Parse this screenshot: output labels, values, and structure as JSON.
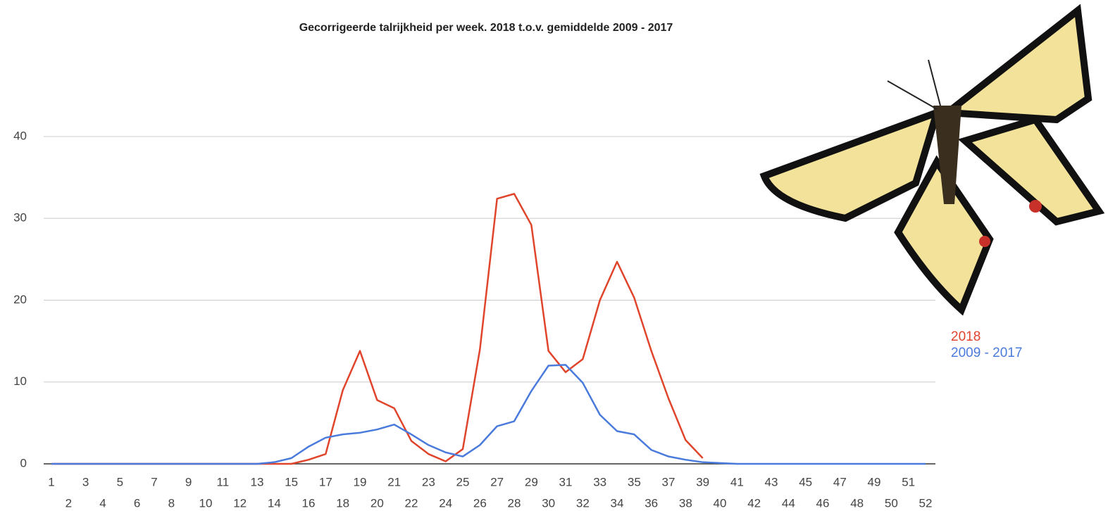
{
  "chart_data": {
    "type": "line",
    "title": "Gecorrigeerde talrijkheid per week. 2018 t.o.v. gemiddelde 2009 - 2017",
    "x": [
      1,
      2,
      3,
      4,
      5,
      6,
      7,
      8,
      9,
      10,
      11,
      12,
      13,
      14,
      15,
      16,
      17,
      18,
      19,
      20,
      21,
      22,
      23,
      24,
      25,
      26,
      27,
      28,
      29,
      30,
      31,
      32,
      33,
      34,
      35,
      36,
      37,
      38,
      39,
      40,
      41,
      42,
      43,
      44,
      45,
      46,
      47,
      48,
      49,
      50,
      51,
      52
    ],
    "xlim": [
      1,
      52
    ],
    "xticks": [
      1,
      2,
      3,
      4,
      5,
      6,
      7,
      8,
      9,
      10,
      11,
      12,
      13,
      14,
      15,
      16,
      17,
      18,
      19,
      20,
      21,
      22,
      23,
      24,
      25,
      26,
      27,
      28,
      29,
      30,
      31,
      32,
      33,
      34,
      35,
      36,
      37,
      38,
      39,
      40,
      41,
      42,
      43,
      44,
      45,
      46,
      47,
      48,
      49,
      50,
      51,
      52
    ],
    "ylim": [
      0,
      40
    ],
    "yticks": [
      0,
      10,
      20,
      30,
      40
    ],
    "grid": true,
    "legend": "right",
    "series": [
      {
        "name": "2018",
        "color": "#e0452c",
        "values": [
          0,
          0,
          0,
          0,
          0,
          0,
          0,
          0,
          0,
          0,
          0,
          0,
          0,
          0,
          0,
          0.5,
          1.2,
          9,
          13.8,
          7.8,
          6.8,
          2.8,
          1.2,
          0.3,
          1.8,
          14,
          32.4,
          33,
          29.2,
          13.8,
          11.2,
          12.8,
          20,
          24.7,
          20.3,
          13.8,
          8,
          2.9,
          0.7,
          null,
          null,
          null,
          null,
          null,
          null,
          null,
          null,
          null,
          null,
          null,
          null,
          null
        ]
      },
      {
        "name": "2009 - 2017",
        "color": "#4a7bdc",
        "values": [
          0,
          0,
          0,
          0,
          0,
          0,
          0,
          0,
          0,
          0,
          0,
          0,
          0,
          0.2,
          0.7,
          2.1,
          3.2,
          3.6,
          3.8,
          4.2,
          4.8,
          3.6,
          2.3,
          1.4,
          0.9,
          2.3,
          4.6,
          5.2,
          8.9,
          12,
          12.1,
          9.9,
          6,
          4,
          3.6,
          1.7,
          0.9,
          0.5,
          0.2,
          0.1,
          0,
          0,
          0,
          0,
          0,
          0,
          0,
          0,
          0,
          0,
          0,
          0
        ]
      }
    ]
  }
}
